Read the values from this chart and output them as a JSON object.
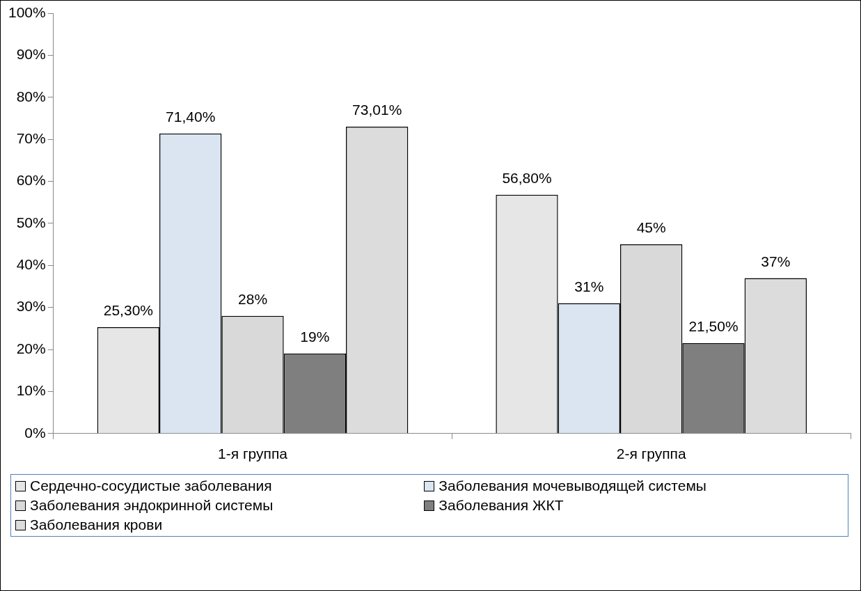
{
  "chart_data": {
    "type": "bar",
    "categories": [
      "1-я группа",
      "2-я группа"
    ],
    "series": [
      {
        "name": "Сердечно-сосудистые заболевания",
        "color": "#e6e6e6",
        "values": [
          25.3,
          56.8
        ],
        "value_labels": [
          "25,30%",
          "56,80%"
        ]
      },
      {
        "name": "Заболевания мочевыводящей системы",
        "color": "#dbe5f1",
        "values": [
          71.4,
          31
        ],
        "value_labels": [
          "71,40%",
          "31%"
        ]
      },
      {
        "name": "Заболевания эндокринной системы",
        "color": "#d9d9d9",
        "values": [
          28,
          45
        ],
        "value_labels": [
          "28%",
          "45%"
        ]
      },
      {
        "name": "Заболевания ЖКТ",
        "color": "#7f7f7f",
        "values": [
          19,
          21.5
        ],
        "value_labels": [
          "19%",
          "21,50%"
        ]
      },
      {
        "name": "Заболевания крови",
        "color": "#dcdcdc",
        "values": [
          73.01,
          37
        ],
        "value_labels": [
          "73,01%",
          "37%"
        ]
      }
    ],
    "ylim": [
      0,
      100
    ],
    "yticks": [
      {
        "value": 0,
        "label": "0%"
      },
      {
        "value": 10,
        "label": "10%"
      },
      {
        "value": 20,
        "label": "20%"
      },
      {
        "value": 30,
        "label": "30%"
      },
      {
        "value": 40,
        "label": "40%"
      },
      {
        "value": 50,
        "label": "50%"
      },
      {
        "value": 60,
        "label": "60%"
      },
      {
        "value": 70,
        "label": "70%"
      },
      {
        "value": 80,
        "label": "80%"
      },
      {
        "value": 90,
        "label": "90%"
      },
      {
        "value": 100,
        "label": "100%"
      }
    ],
    "grid": false,
    "legend": "bottom"
  }
}
